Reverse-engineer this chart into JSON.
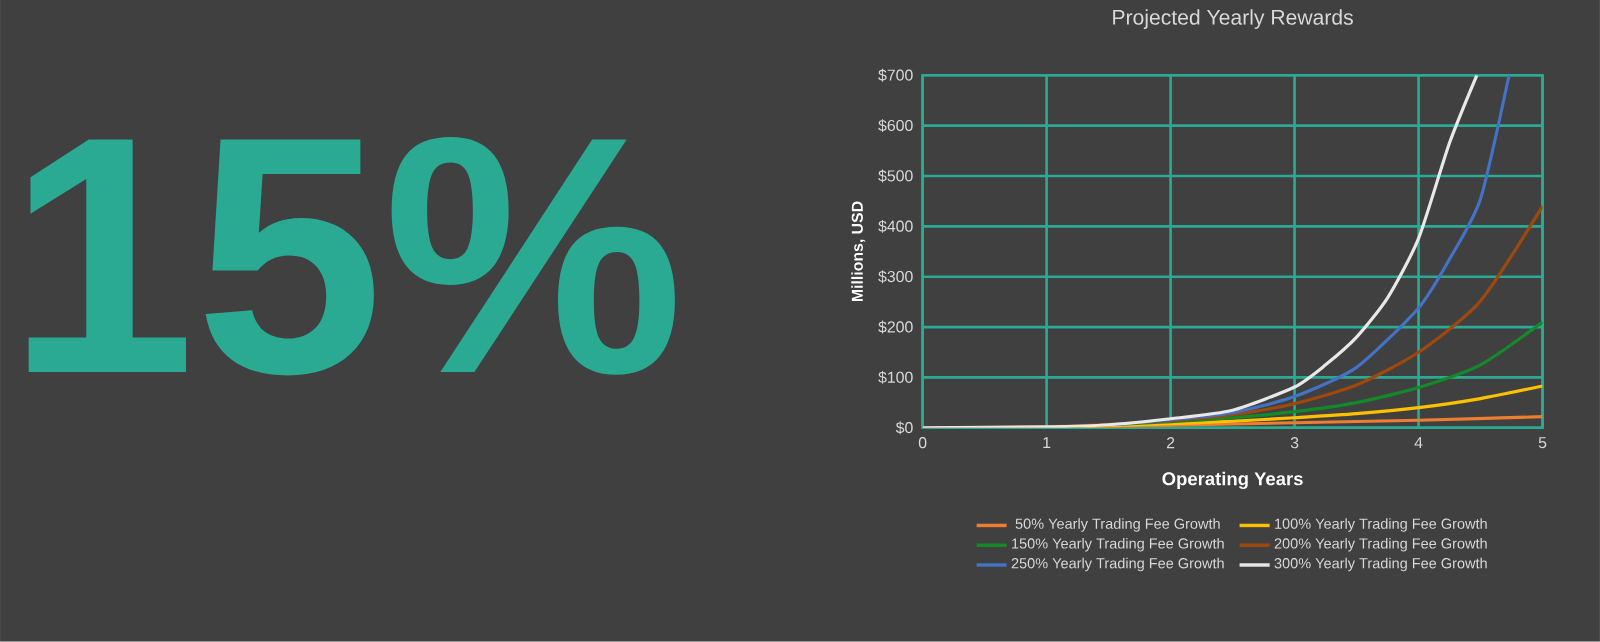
{
  "chart_data": {
    "type": "line",
    "title": "Projected Yearly Rewards",
    "xlabel": "Operating Years",
    "ylabel": "Millions, USD",
    "annotations": [
      "15%"
    ],
    "xlim": [
      0,
      5
    ],
    "xticks": [
      0,
      1,
      2,
      3,
      4,
      5
    ],
    "ylim": [
      0,
      700
    ],
    "yticks": [
      {
        "value": 0,
        "label": "$0"
      },
      {
        "value": 100,
        "label": "$100"
      },
      {
        "value": 200,
        "label": "$200"
      },
      {
        "value": 300,
        "label": "$300"
      },
      {
        "value": 400,
        "label": "$400"
      },
      {
        "value": 500,
        "label": "$500"
      },
      {
        "value": 600,
        "label": "$600"
      },
      {
        "value": 700,
        "label": "$700"
      }
    ],
    "grid": true,
    "legend": "bottom",
    "marker": "none",
    "line_style": "solid",
    "series": [
      {
        "name": "50% Yearly Trading Fee Growth",
        "color": "#ed7d31",
        "x": [
          0,
          1,
          2,
          3,
          4,
          5
        ],
        "values": [
          0,
          1,
          5,
          10,
          15,
          22
        ]
      },
      {
        "name": "100% Yearly Trading Fee Growth",
        "color": "#ffc000",
        "x": [
          0,
          1,
          2,
          2.5,
          3,
          3.5,
          4,
          4.5,
          5
        ],
        "values": [
          0,
          1,
          8,
          13,
          20,
          28,
          40,
          58,
          83
        ]
      },
      {
        "name": "150% Yearly Trading Fee Growth",
        "color": "#138a2a",
        "x": [
          0,
          1,
          2,
          2.5,
          3,
          3.5,
          4,
          4.5,
          5
        ],
        "values": [
          0,
          1,
          12,
          20,
          32,
          50,
          80,
          125,
          210
        ]
      },
      {
        "name": "200% Yearly Trading Fee Growth",
        "color": "#9e480e",
        "x": [
          0,
          1,
          2,
          2.5,
          3,
          3.5,
          4,
          4.5,
          5
        ],
        "values": [
          0,
          2,
          14,
          26,
          48,
          85,
          150,
          252,
          440
        ]
      },
      {
        "name": "250% Yearly Trading Fee Growth",
        "color": "#4472c4",
        "x": [
          1.5,
          2,
          2.5,
          3,
          3.5,
          4,
          4.25,
          4.5,
          4.73
        ],
        "values": [
          6,
          16,
          30,
          62,
          120,
          238,
          335,
          455,
          700
        ]
      },
      {
        "name": "300% Yearly Trading Fee Growth",
        "color": "#e8e8e8",
        "x": [
          0,
          1,
          1.5,
          2,
          2.5,
          3,
          3.25,
          3.5,
          3.75,
          4,
          4.25,
          4.47
        ],
        "values": [
          0,
          2,
          6,
          18,
          35,
          81,
          125,
          180,
          258,
          376,
          566,
          700
        ]
      }
    ]
  }
}
